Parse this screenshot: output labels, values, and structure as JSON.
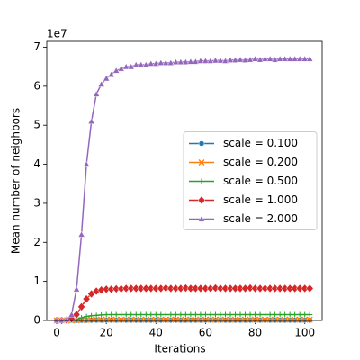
{
  "chart_data": {
    "type": "line",
    "x_label": "Iterations",
    "y_label": "Mean number of neighbors",
    "y_offset_label": "1e7",
    "xlim": [
      -4,
      107
    ],
    "ylim": [
      0,
      7.15
    ],
    "xticks": [
      0,
      20,
      40,
      60,
      80,
      100
    ],
    "yticks": [
      0,
      1,
      2,
      3,
      4,
      5,
      6,
      7
    ],
    "legend": "center right",
    "x": [
      0,
      2,
      4,
      6,
      8,
      10,
      12,
      14,
      16,
      18,
      20,
      22,
      24,
      26,
      28,
      30,
      32,
      34,
      36,
      38,
      40,
      42,
      44,
      46,
      48,
      50,
      52,
      54,
      56,
      58,
      60,
      62,
      64,
      66,
      68,
      70,
      72,
      74,
      76,
      78,
      80,
      82,
      84,
      86,
      88,
      90,
      92,
      94,
      96,
      98,
      100,
      102
    ],
    "series": [
      {
        "name": "scale = 0.100",
        "color": "#1f77b4",
        "marker": "circle",
        "values": [
          0,
          0,
          0,
          0,
          0,
          0.002,
          0.003,
          0.004,
          0.005,
          0.005,
          0.005,
          0.005,
          0.005,
          0.005,
          0.005,
          0.005,
          0.005,
          0.005,
          0.005,
          0.005,
          0.005,
          0.005,
          0.005,
          0.005,
          0.005,
          0.005,
          0.005,
          0.005,
          0.005,
          0.005,
          0.005,
          0.005,
          0.005,
          0.005,
          0.005,
          0.005,
          0.005,
          0.005,
          0.005,
          0.005,
          0.005,
          0.005,
          0.005,
          0.005,
          0.005,
          0.005,
          0.005,
          0.005,
          0.005,
          0.005,
          0.005,
          0.005
        ]
      },
      {
        "name": "scale = 0.200",
        "color": "#ff7f0e",
        "marker": "x",
        "values": [
          0,
          0,
          0,
          0,
          0.005,
          0.01,
          0.015,
          0.02,
          0.02,
          0.02,
          0.02,
          0.02,
          0.02,
          0.02,
          0.02,
          0.02,
          0.02,
          0.02,
          0.02,
          0.02,
          0.02,
          0.02,
          0.02,
          0.02,
          0.02,
          0.02,
          0.02,
          0.02,
          0.02,
          0.02,
          0.02,
          0.02,
          0.02,
          0.02,
          0.02,
          0.02,
          0.02,
          0.02,
          0.02,
          0.02,
          0.02,
          0.02,
          0.02,
          0.02,
          0.02,
          0.02,
          0.02,
          0.02,
          0.02,
          0.02,
          0.02,
          0.02
        ]
      },
      {
        "name": "scale = 0.500",
        "color": "#2ca02c",
        "marker": "plus",
        "values": [
          0,
          0,
          0,
          0.01,
          0.03,
          0.07,
          0.1,
          0.12,
          0.13,
          0.14,
          0.15,
          0.15,
          0.15,
          0.15,
          0.15,
          0.15,
          0.15,
          0.15,
          0.15,
          0.15,
          0.15,
          0.15,
          0.15,
          0.15,
          0.15,
          0.15,
          0.15,
          0.15,
          0.15,
          0.15,
          0.15,
          0.15,
          0.15,
          0.15,
          0.15,
          0.15,
          0.15,
          0.15,
          0.15,
          0.15,
          0.15,
          0.15,
          0.15,
          0.15,
          0.15,
          0.15,
          0.15,
          0.15,
          0.15,
          0.15,
          0.15,
          0.15
        ]
      },
      {
        "name": "scale = 1.000",
        "color": "#d62728",
        "marker": "diamond",
        "values": [
          0,
          0,
          0.01,
          0.04,
          0.15,
          0.35,
          0.55,
          0.68,
          0.75,
          0.78,
          0.8,
          0.8,
          0.81,
          0.81,
          0.82,
          0.82,
          0.82,
          0.82,
          0.82,
          0.82,
          0.82,
          0.82,
          0.83,
          0.82,
          0.82,
          0.82,
          0.83,
          0.82,
          0.82,
          0.82,
          0.82,
          0.82,
          0.83,
          0.82,
          0.82,
          0.82,
          0.82,
          0.82,
          0.82,
          0.83,
          0.82,
          0.82,
          0.82,
          0.82,
          0.82,
          0.82,
          0.82,
          0.82,
          0.82,
          0.82,
          0.82,
          0.82
        ]
      },
      {
        "name": "scale = 2.000",
        "color": "#9467bd",
        "marker": "triangle",
        "values": [
          0,
          0,
          0.02,
          0.15,
          0.8,
          2.2,
          4.0,
          5.1,
          5.8,
          6.05,
          6.2,
          6.3,
          6.4,
          6.45,
          6.5,
          6.5,
          6.55,
          6.55,
          6.55,
          6.58,
          6.58,
          6.6,
          6.6,
          6.6,
          6.62,
          6.62,
          6.62,
          6.63,
          6.63,
          6.65,
          6.65,
          6.65,
          6.66,
          6.66,
          6.65,
          6.67,
          6.67,
          6.68,
          6.67,
          6.68,
          6.7,
          6.68,
          6.7,
          6.7,
          6.68,
          6.7,
          6.7,
          6.7,
          6.7,
          6.7,
          6.7,
          6.7
        ]
      }
    ]
  }
}
